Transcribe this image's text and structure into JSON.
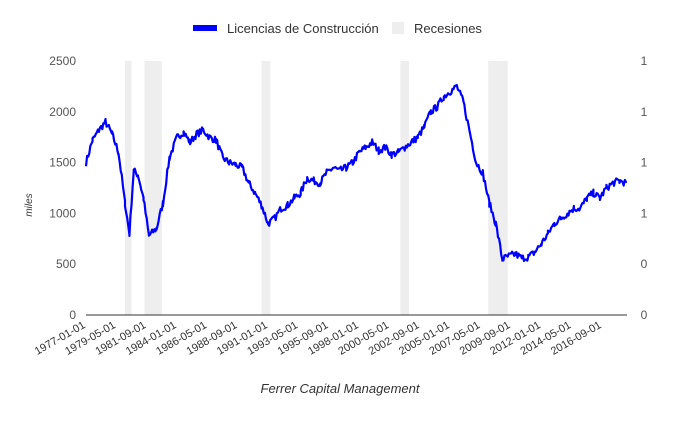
{
  "chart_data": {
    "type": "line",
    "title": "",
    "xlabel": "Ferrer Capital Management",
    "ylabel": "miles",
    "ylim": [
      0,
      2500
    ],
    "yticks": [
      0,
      500,
      1000,
      1500,
      2000,
      2500
    ],
    "y2_ticks": [
      "0",
      "0",
      "1",
      "1",
      "1",
      "1"
    ],
    "xlim": [
      "1977-01-01",
      "2018-08-01"
    ],
    "xticks": [
      "1977-01-01",
      "1979-05-01",
      "1981-09-01",
      "1984-01-01",
      "1986-05-01",
      "1988-09-01",
      "1991-01-01",
      "1993-05-01",
      "1995-09-01",
      "1998-01-01",
      "2000-05-01",
      "2002-09-01",
      "2005-01-01",
      "2007-05-01",
      "2009-09-01",
      "2012-01-01",
      "2014-05-01",
      "2016-09-01"
    ],
    "grid": false,
    "legend_position": "top",
    "series": [
      {
        "name": "Licencias de Construcción",
        "color": "#0000ff",
        "x": [
          "1977-01-01",
          "1977-07-01",
          "1978-01-01",
          "1978-07-01",
          "1979-01-01",
          "1979-07-01",
          "1980-01-01",
          "1980-05-01",
          "1980-09-01",
          "1981-01-01",
          "1981-06-01",
          "1981-11-01",
          "1982-06-01",
          "1982-12-01",
          "1983-06-01",
          "1984-01-01",
          "1984-07-01",
          "1985-01-01",
          "1985-07-01",
          "1986-01-01",
          "1986-07-01",
          "1987-01-01",
          "1987-07-01",
          "1988-01-01",
          "1988-07-01",
          "1989-01-01",
          "1989-07-01",
          "1990-01-01",
          "1990-07-01",
          "1991-01-01",
          "1991-07-01",
          "1992-01-01",
          "1992-07-01",
          "1993-01-01",
          "1993-07-01",
          "1994-01-01",
          "1994-07-01",
          "1995-01-01",
          "1995-07-01",
          "1996-01-01",
          "1996-07-01",
          "1997-01-01",
          "1997-07-01",
          "1998-01-01",
          "1998-07-01",
          "1999-01-01",
          "1999-07-01",
          "2000-01-01",
          "2000-07-01",
          "2001-01-01",
          "2001-07-01",
          "2002-01-01",
          "2002-07-01",
          "2003-01-01",
          "2003-07-01",
          "2004-01-01",
          "2004-07-01",
          "2005-01-01",
          "2005-07-01",
          "2006-01-01",
          "2006-07-01",
          "2007-01-01",
          "2007-07-01",
          "2008-01-01",
          "2008-07-01",
          "2009-01-01",
          "2009-07-01",
          "2010-01-01",
          "2010-07-01",
          "2011-01-01",
          "2011-07-01",
          "2012-01-01",
          "2012-07-01",
          "2013-01-01",
          "2013-07-01",
          "2014-01-01",
          "2014-07-01",
          "2015-01-01",
          "2015-07-01",
          "2016-01-01",
          "2016-07-01",
          "2017-01-01",
          "2017-07-01",
          "2018-01-01",
          "2018-07-01"
        ],
        "values": [
          1500,
          1720,
          1820,
          1900,
          1780,
          1600,
          1100,
          800,
          1420,
          1380,
          1150,
          780,
          850,
          1100,
          1550,
          1750,
          1800,
          1700,
          1780,
          1820,
          1750,
          1720,
          1550,
          1500,
          1480,
          1450,
          1300,
          1200,
          1080,
          900,
          950,
          1050,
          1080,
          1150,
          1200,
          1350,
          1320,
          1300,
          1400,
          1450,
          1420,
          1450,
          1500,
          1600,
          1650,
          1700,
          1620,
          1650,
          1580,
          1600,
          1650,
          1700,
          1750,
          1850,
          2000,
          2050,
          2150,
          2200,
          2250,
          2100,
          1800,
          1500,
          1400,
          1100,
          900,
          550,
          580,
          600,
          560,
          570,
          620,
          700,
          800,
          900,
          950,
          1000,
          1050,
          1050,
          1150,
          1200,
          1150,
          1250,
          1300,
          1320,
          1300
        ]
      }
    ],
    "recession_periods": [
      {
        "start": "1980-01-01",
        "end": "1980-07-01"
      },
      {
        "start": "1981-07-01",
        "end": "1982-11-01"
      },
      {
        "start": "1990-07-01",
        "end": "1991-03-01"
      },
      {
        "start": "2001-03-01",
        "end": "2001-11-01"
      },
      {
        "start": "2007-12-01",
        "end": "2009-06-01"
      }
    ],
    "legend": {
      "series_label": "Licencias de Construcción",
      "recession_label": "Recesiones",
      "recession_color": "#eeeeee"
    }
  }
}
